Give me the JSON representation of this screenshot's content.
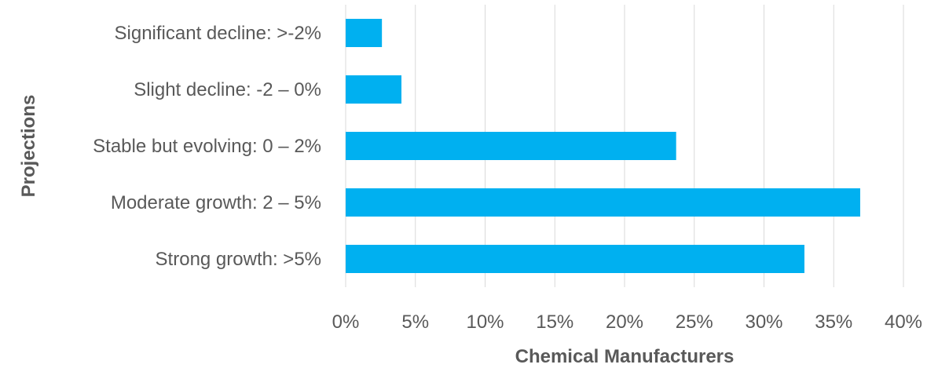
{
  "chart_data": {
    "type": "bar",
    "orientation": "horizontal",
    "categories": [
      "Significant decline: >-2%",
      "Slight decline: -2 – 0%",
      "Stable but evolving: 0 – 2%",
      "Moderate growth: 2 – 5%",
      "Strong growth: >5%"
    ],
    "values": [
      2.6,
      4.0,
      23.7,
      36.9,
      32.9
    ],
    "xlabel": "Chemical Manufacturers",
    "ylabel": "Projections",
    "xlim": [
      0,
      40
    ],
    "x_ticks": [
      "0%",
      "5%",
      "10%",
      "15%",
      "20%",
      "25%",
      "30%",
      "35%",
      "40%"
    ],
    "grid": "vertical",
    "bar_color": "#00b0f0"
  }
}
